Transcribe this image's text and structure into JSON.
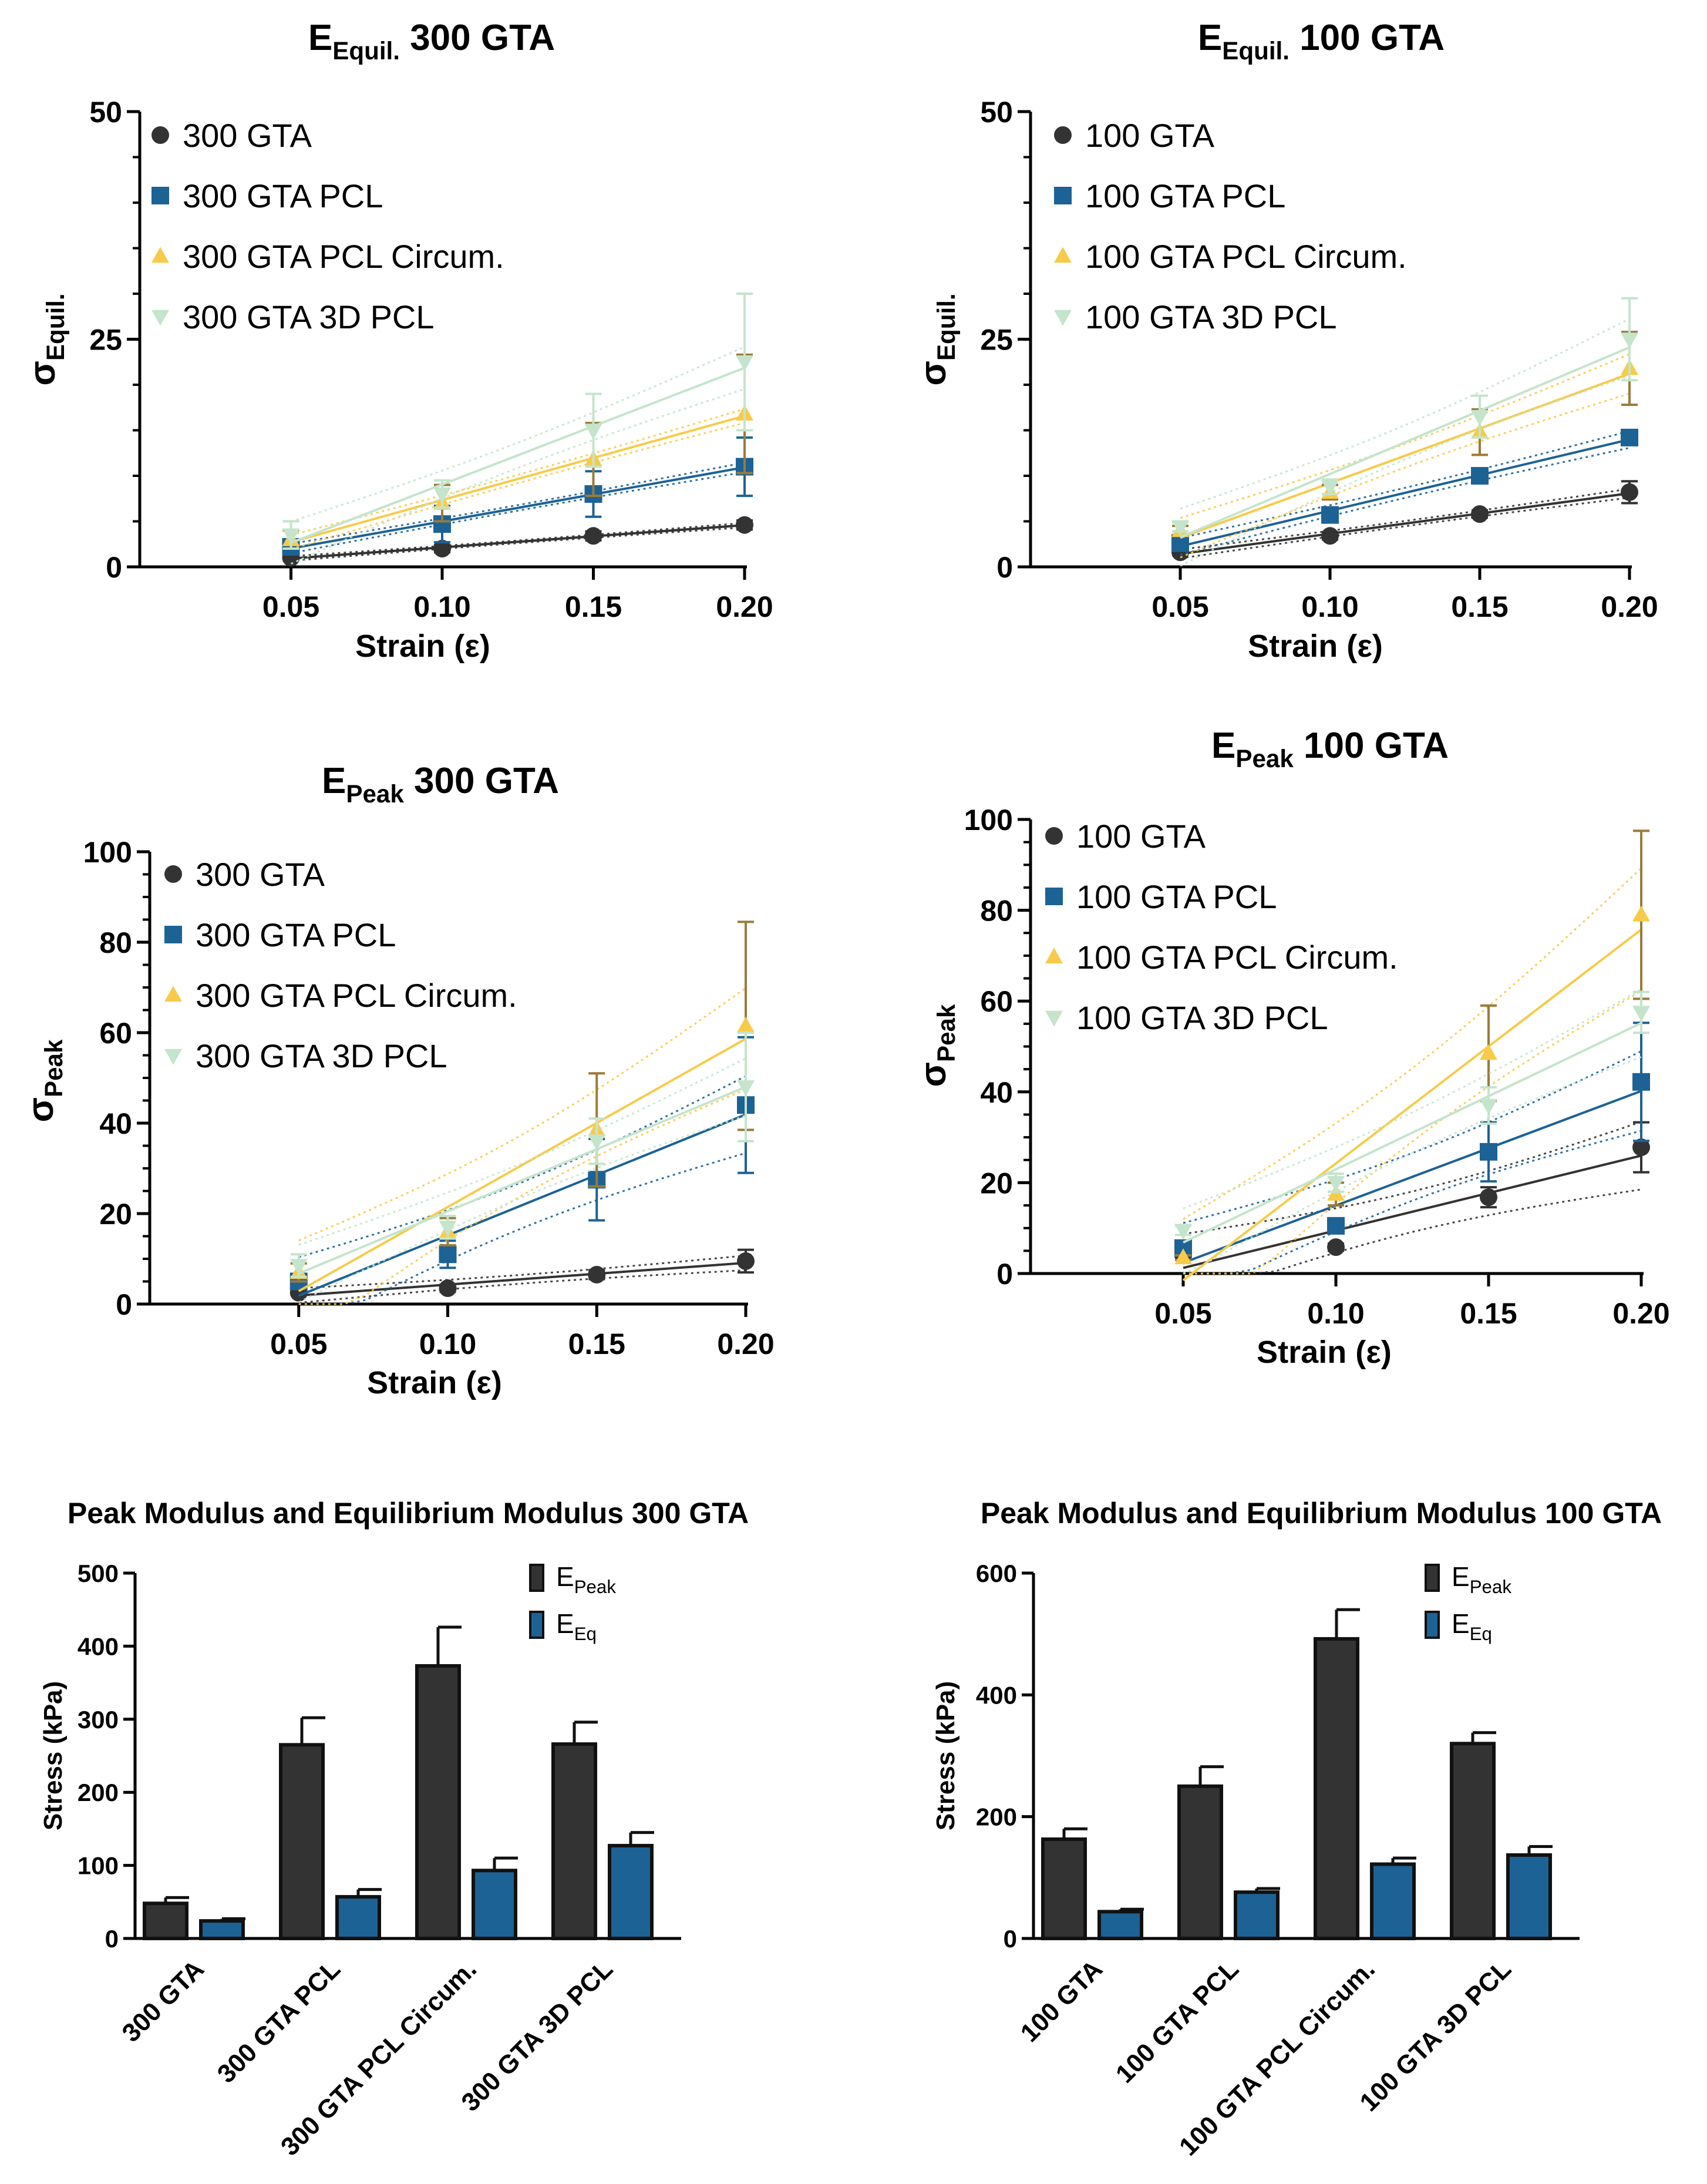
{
  "colors": {
    "gta": "#333333",
    "pcl": "#1d6295",
    "circ": "#f7cb4a",
    "pcl3d": "#c5e4cc",
    "bar_peak": "#333333",
    "bar_eq": "#1d6295"
  },
  "chart_data": [
    {
      "type": "scatter",
      "title_main": "E",
      "title_sub": "Equil.",
      "title_rest": " 300 GTA",
      "ylabel_main": "σ",
      "ylabel_sub": "Equil.",
      "xlabel": "Strain (ε)",
      "x": [
        0.05,
        0.1,
        0.15,
        0.2
      ],
      "x_tick_labels": [
        "0.05",
        "0.10",
        "0.15",
        "0.20"
      ],
      "xlim": [
        0.0,
        0.2
      ],
      "ylim": [
        0,
        50
      ],
      "y_ticks": [
        0,
        25,
        50
      ],
      "y_tick_labels": [
        "0",
        "25",
        "50"
      ],
      "series": [
        {
          "name": "300 GTA",
          "marker": "circle",
          "color_key": "gta",
          "values": [
            1.0,
            2.0,
            3.4,
            4.6
          ],
          "errors": [
            0.3,
            0.4,
            0.5,
            0.5
          ]
        },
        {
          "name": "300 GTA PCL",
          "marker": "square",
          "color_key": "pcl",
          "values": [
            2.2,
            4.7,
            8.0,
            11.0
          ],
          "errors": [
            0.5,
            2.0,
            2.5,
            3.2
          ]
        },
        {
          "name": "300 GTA PCL Circum.",
          "marker": "triangle-up",
          "color_key": "circ",
          "values": [
            3.0,
            7.0,
            11.8,
            16.8
          ],
          "errors": [
            1.0,
            2.0,
            4.0,
            6.5
          ]
        },
        {
          "name": "300 GTA 3D PCL",
          "marker": "triangle-down",
          "color_key": "pcl3d",
          "values": [
            3.5,
            8.0,
            15.0,
            22.5
          ],
          "errors": [
            1.5,
            1.5,
            4.0,
            7.5
          ]
        }
      ]
    },
    {
      "type": "scatter",
      "title_main": "E",
      "title_sub": "Equil.",
      "title_rest": " 100 GTA",
      "ylabel_main": "σ",
      "ylabel_sub": "Equil.",
      "xlabel": "Strain (ε)",
      "x": [
        0.05,
        0.1,
        0.15,
        0.2
      ],
      "x_tick_labels": [
        "0.05",
        "0.10",
        "0.15",
        "0.20"
      ],
      "xlim": [
        0.0,
        0.2
      ],
      "ylim": [
        0,
        50
      ],
      "y_ticks": [
        0,
        25,
        50
      ],
      "y_tick_labels": [
        "0",
        "25",
        "50"
      ],
      "series": [
        {
          "name": "100 GTA",
          "marker": "circle",
          "color_key": "gta",
          "values": [
            1.6,
            3.4,
            5.8,
            8.2
          ],
          "errors": [
            0.3,
            0.4,
            0.4,
            1.2
          ]
        },
        {
          "name": "100 GTA PCL",
          "marker": "square",
          "color_key": "pcl",
          "values": [
            2.6,
            5.7,
            10.0,
            14.2
          ],
          "errors": [
            0.3,
            0.5,
            0.6,
            0.6
          ]
        },
        {
          "name": "100 GTA PCL Circum.",
          "marker": "triangle-up",
          "color_key": "circ",
          "values": [
            4.0,
            8.2,
            14.8,
            21.8
          ],
          "errors": [
            0.5,
            0.8,
            2.5,
            4.0
          ]
        },
        {
          "name": "100 GTA 3D PCL",
          "marker": "triangle-down",
          "color_key": "pcl3d",
          "values": [
            4.4,
            8.8,
            16.5,
            25.0
          ],
          "errors": [
            0.5,
            0.8,
            2.3,
            4.5
          ]
        }
      ]
    },
    {
      "type": "scatter",
      "title_main": "E",
      "title_sub": "Peak",
      "title_rest": " 300 GTA",
      "ylabel_main": "σ",
      "ylabel_sub": "Peak",
      "xlabel": "Strain (ε)",
      "x": [
        0.05,
        0.1,
        0.15,
        0.2
      ],
      "x_tick_labels": [
        "0.05",
        "0.10",
        "0.15",
        "0.20"
      ],
      "xlim": [
        0.0,
        0.2
      ],
      "ylim": [
        0,
        100
      ],
      "y_ticks": [
        0,
        20,
        40,
        60,
        80,
        100
      ],
      "y_tick_labels": [
        "0",
        "20",
        "40",
        "60",
        "80",
        "100"
      ],
      "series": [
        {
          "name": "300 GTA",
          "marker": "circle",
          "color_key": "gta",
          "values": [
            2.5,
            3.5,
            6.5,
            9.5
          ],
          "errors": [
            0.5,
            0.8,
            1.0,
            2.5
          ]
        },
        {
          "name": "300 GTA PCL",
          "marker": "square",
          "color_key": "pcl",
          "values": [
            5.0,
            11.0,
            27.5,
            44.0
          ],
          "errors": [
            1.0,
            3.0,
            9.0,
            15.0
          ]
        },
        {
          "name": "300 GTA PCL Circum.",
          "marker": "triangle-up",
          "color_key": "circ",
          "values": [
            7.0,
            16.0,
            38.5,
            61.5
          ],
          "errors": [
            2.0,
            3.0,
            12.5,
            23.0
          ]
        },
        {
          "name": "300 GTA 3D PCL",
          "marker": "triangle-down",
          "color_key": "pcl3d",
          "values": [
            8.5,
            17.0,
            36.0,
            48.0
          ],
          "errors": [
            2.5,
            2.5,
            5.0,
            12.0
          ]
        }
      ]
    },
    {
      "type": "scatter",
      "title_main": "E",
      "title_sub": "Peak",
      "title_rest": " 100 GTA",
      "ylabel_main": "σ",
      "ylabel_sub": "Peak",
      "xlabel": "Strain (ε)",
      "x": [
        0.05,
        0.1,
        0.15,
        0.2
      ],
      "x_tick_labels": [
        "0.05",
        "0.10",
        "0.15",
        "0.20"
      ],
      "xlim": [
        0.0,
        0.2
      ],
      "ylim": [
        0,
        100
      ],
      "y_ticks": [
        0,
        20,
        40,
        60,
        80,
        100
      ],
      "y_tick_labels": [
        "0",
        "20",
        "40",
        "60",
        "80",
        "100"
      ],
      "series": [
        {
          "name": "100 GTA",
          "marker": "circle",
          "color_key": "gta",
          "values": [
            4.0,
            5.8,
            16.8,
            27.8
          ],
          "errors": [
            0.5,
            0.8,
            2.2,
            5.5
          ]
        },
        {
          "name": "100 GTA PCL",
          "marker": "square",
          "color_key": "pcl",
          "values": [
            5.6,
            10.5,
            26.8,
            42.2
          ],
          "errors": [
            0.8,
            1.5,
            6.5,
            13.0
          ]
        },
        {
          "name": "100 GTA PCL Circum.",
          "marker": "triangle-up",
          "color_key": "circ",
          "values": [
            3.5,
            17.5,
            48.5,
            79.0
          ],
          "errors": [
            0.5,
            2.5,
            10.5,
            18.5
          ]
        },
        {
          "name": "100 GTA 3D PCL",
          "marker": "triangle-down",
          "color_key": "pcl3d",
          "values": [
            9.5,
            20.0,
            37.0,
            57.5
          ],
          "errors": [
            1.0,
            2.0,
            4.0,
            4.5
          ]
        }
      ]
    },
    {
      "type": "bar",
      "title": "Peak Modulus and Equilibrium Modulus 300 GTA",
      "ylabel": "Stress (kPa)",
      "categories": [
        "300 GTA",
        "300 GTA PCL",
        "300 GTA PCL Circum.",
        "300 GTA 3D PCL"
      ],
      "ylim": [
        0,
        500
      ],
      "y_ticks": [
        0,
        100,
        200,
        300,
        400,
        500
      ],
      "y_tick_labels": [
        "0",
        "100",
        "200",
        "300",
        "400",
        "500"
      ],
      "series": [
        {
          "name_main": "E",
          "name_sub": "Peak",
          "color_key": "bar_peak",
          "values": [
            48,
            265,
            373,
            266
          ],
          "errors": [
            8,
            37,
            53,
            30
          ]
        },
        {
          "name_main": "E",
          "name_sub": "Eq",
          "color_key": "bar_eq",
          "values": [
            24,
            57,
            93,
            127
          ],
          "errors": [
            3,
            10,
            17,
            18
          ]
        }
      ]
    },
    {
      "type": "bar",
      "title": "Peak Modulus and Equilibrium Modulus 100 GTA",
      "ylabel": "Stress (kPa)",
      "categories": [
        "100 GTA",
        "100 GTA PCL",
        "100 GTA PCL Circum.",
        "100 GTA 3D PCL"
      ],
      "ylim": [
        0,
        600
      ],
      "y_ticks": [
        0,
        200,
        400,
        600
      ],
      "y_tick_labels": [
        "0",
        "200",
        "400",
        "600"
      ],
      "series": [
        {
          "name_main": "E",
          "name_sub": "Peak",
          "color_key": "bar_peak",
          "values": [
            163,
            250,
            492,
            320
          ],
          "errors": [
            17,
            32,
            48,
            18
          ]
        },
        {
          "name_main": "E",
          "name_sub": "Eq",
          "color_key": "bar_eq",
          "values": [
            44,
            76,
            122,
            137
          ],
          "errors": [
            4,
            6,
            10,
            14
          ]
        }
      ]
    }
  ]
}
